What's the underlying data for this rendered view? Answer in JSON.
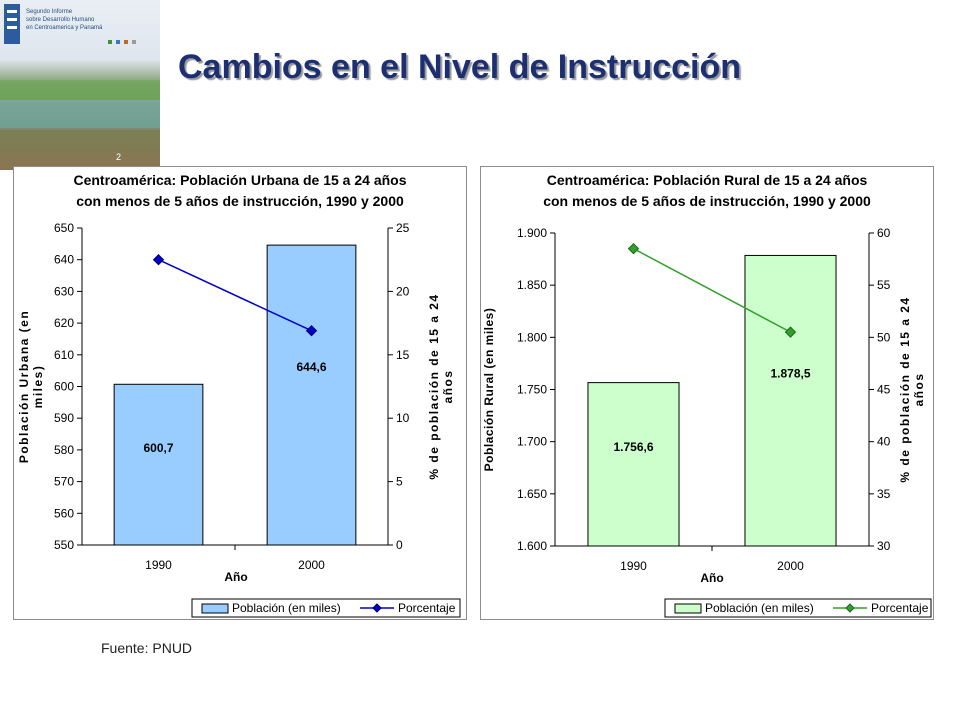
{
  "title": "Cambios en el Nivel de Instrucción",
  "cover": {
    "lines": [
      "Segundo Informe",
      "sobre Desarrollo Humano",
      "en Centroamerica y Panamá"
    ],
    "page": "2"
  },
  "source": "Fuente: PNUD",
  "colors": {
    "title": "#1b2f72",
    "urban_bar": "#99ccff",
    "urban_line": "#0000cc",
    "rural_bar": "#ccffcc",
    "rural_line": "#33a02c"
  },
  "chart_data": [
    {
      "type": "bar",
      "title": [
        "Centroamérica: Población Urbana de 15 a 24 años",
        "con menos de 5 años de instrucción, 1990 y 2000"
      ],
      "categories": [
        "1990",
        "2000"
      ],
      "xlabel": "Año",
      "ylabel": "Población Urbana (en miles)",
      "y2label": "% de población de 15 a 24 años",
      "ylim": [
        550,
        650
      ],
      "yticks": [
        "550",
        "560",
        "570",
        "580",
        "590",
        "600",
        "610",
        "620",
        "630",
        "640",
        "650"
      ],
      "y2lim": [
        0,
        25
      ],
      "y2ticks": [
        "0",
        "5",
        "10",
        "15",
        "20",
        "25"
      ],
      "series": [
        {
          "name": "Población (en miles)",
          "type": "bar",
          "axis": "left",
          "values": [
            600.7,
            644.6
          ],
          "labels": [
            "600,7",
            "644,6"
          ]
        },
        {
          "name": "Porcentaje",
          "type": "line",
          "axis": "right",
          "values": [
            22.5,
            16.9
          ]
        }
      ],
      "legend_position": "bottom-right",
      "grid": false
    },
    {
      "type": "bar",
      "title": [
        "Centroamérica: Población Rural de 15 a 24 años",
        "con menos de 5 años de instrucción, 1990 y 2000"
      ],
      "categories": [
        "1990",
        "2000"
      ],
      "xlabel": "Año",
      "ylabel": "Población Rural (en miles)",
      "y2label": "% de población de 15 a 24 años",
      "ylim": [
        1600,
        1900
      ],
      "yticks": [
        "1.600",
        "1.650",
        "1.700",
        "1.750",
        "1.800",
        "1.850",
        "1.900"
      ],
      "y2lim": [
        30,
        60
      ],
      "y2ticks": [
        "30",
        "35",
        "40",
        "45",
        "50",
        "55",
        "60"
      ],
      "series": [
        {
          "name": "Población (en miles)",
          "type": "bar",
          "axis": "left",
          "values": [
            1756.6,
            1878.5
          ],
          "labels": [
            "1.756,6",
            "1.878,5"
          ]
        },
        {
          "name": "Porcentaje",
          "type": "line",
          "axis": "right",
          "values": [
            58.5,
            50.5
          ]
        }
      ],
      "legend_position": "bottom-right",
      "grid": false
    }
  ]
}
